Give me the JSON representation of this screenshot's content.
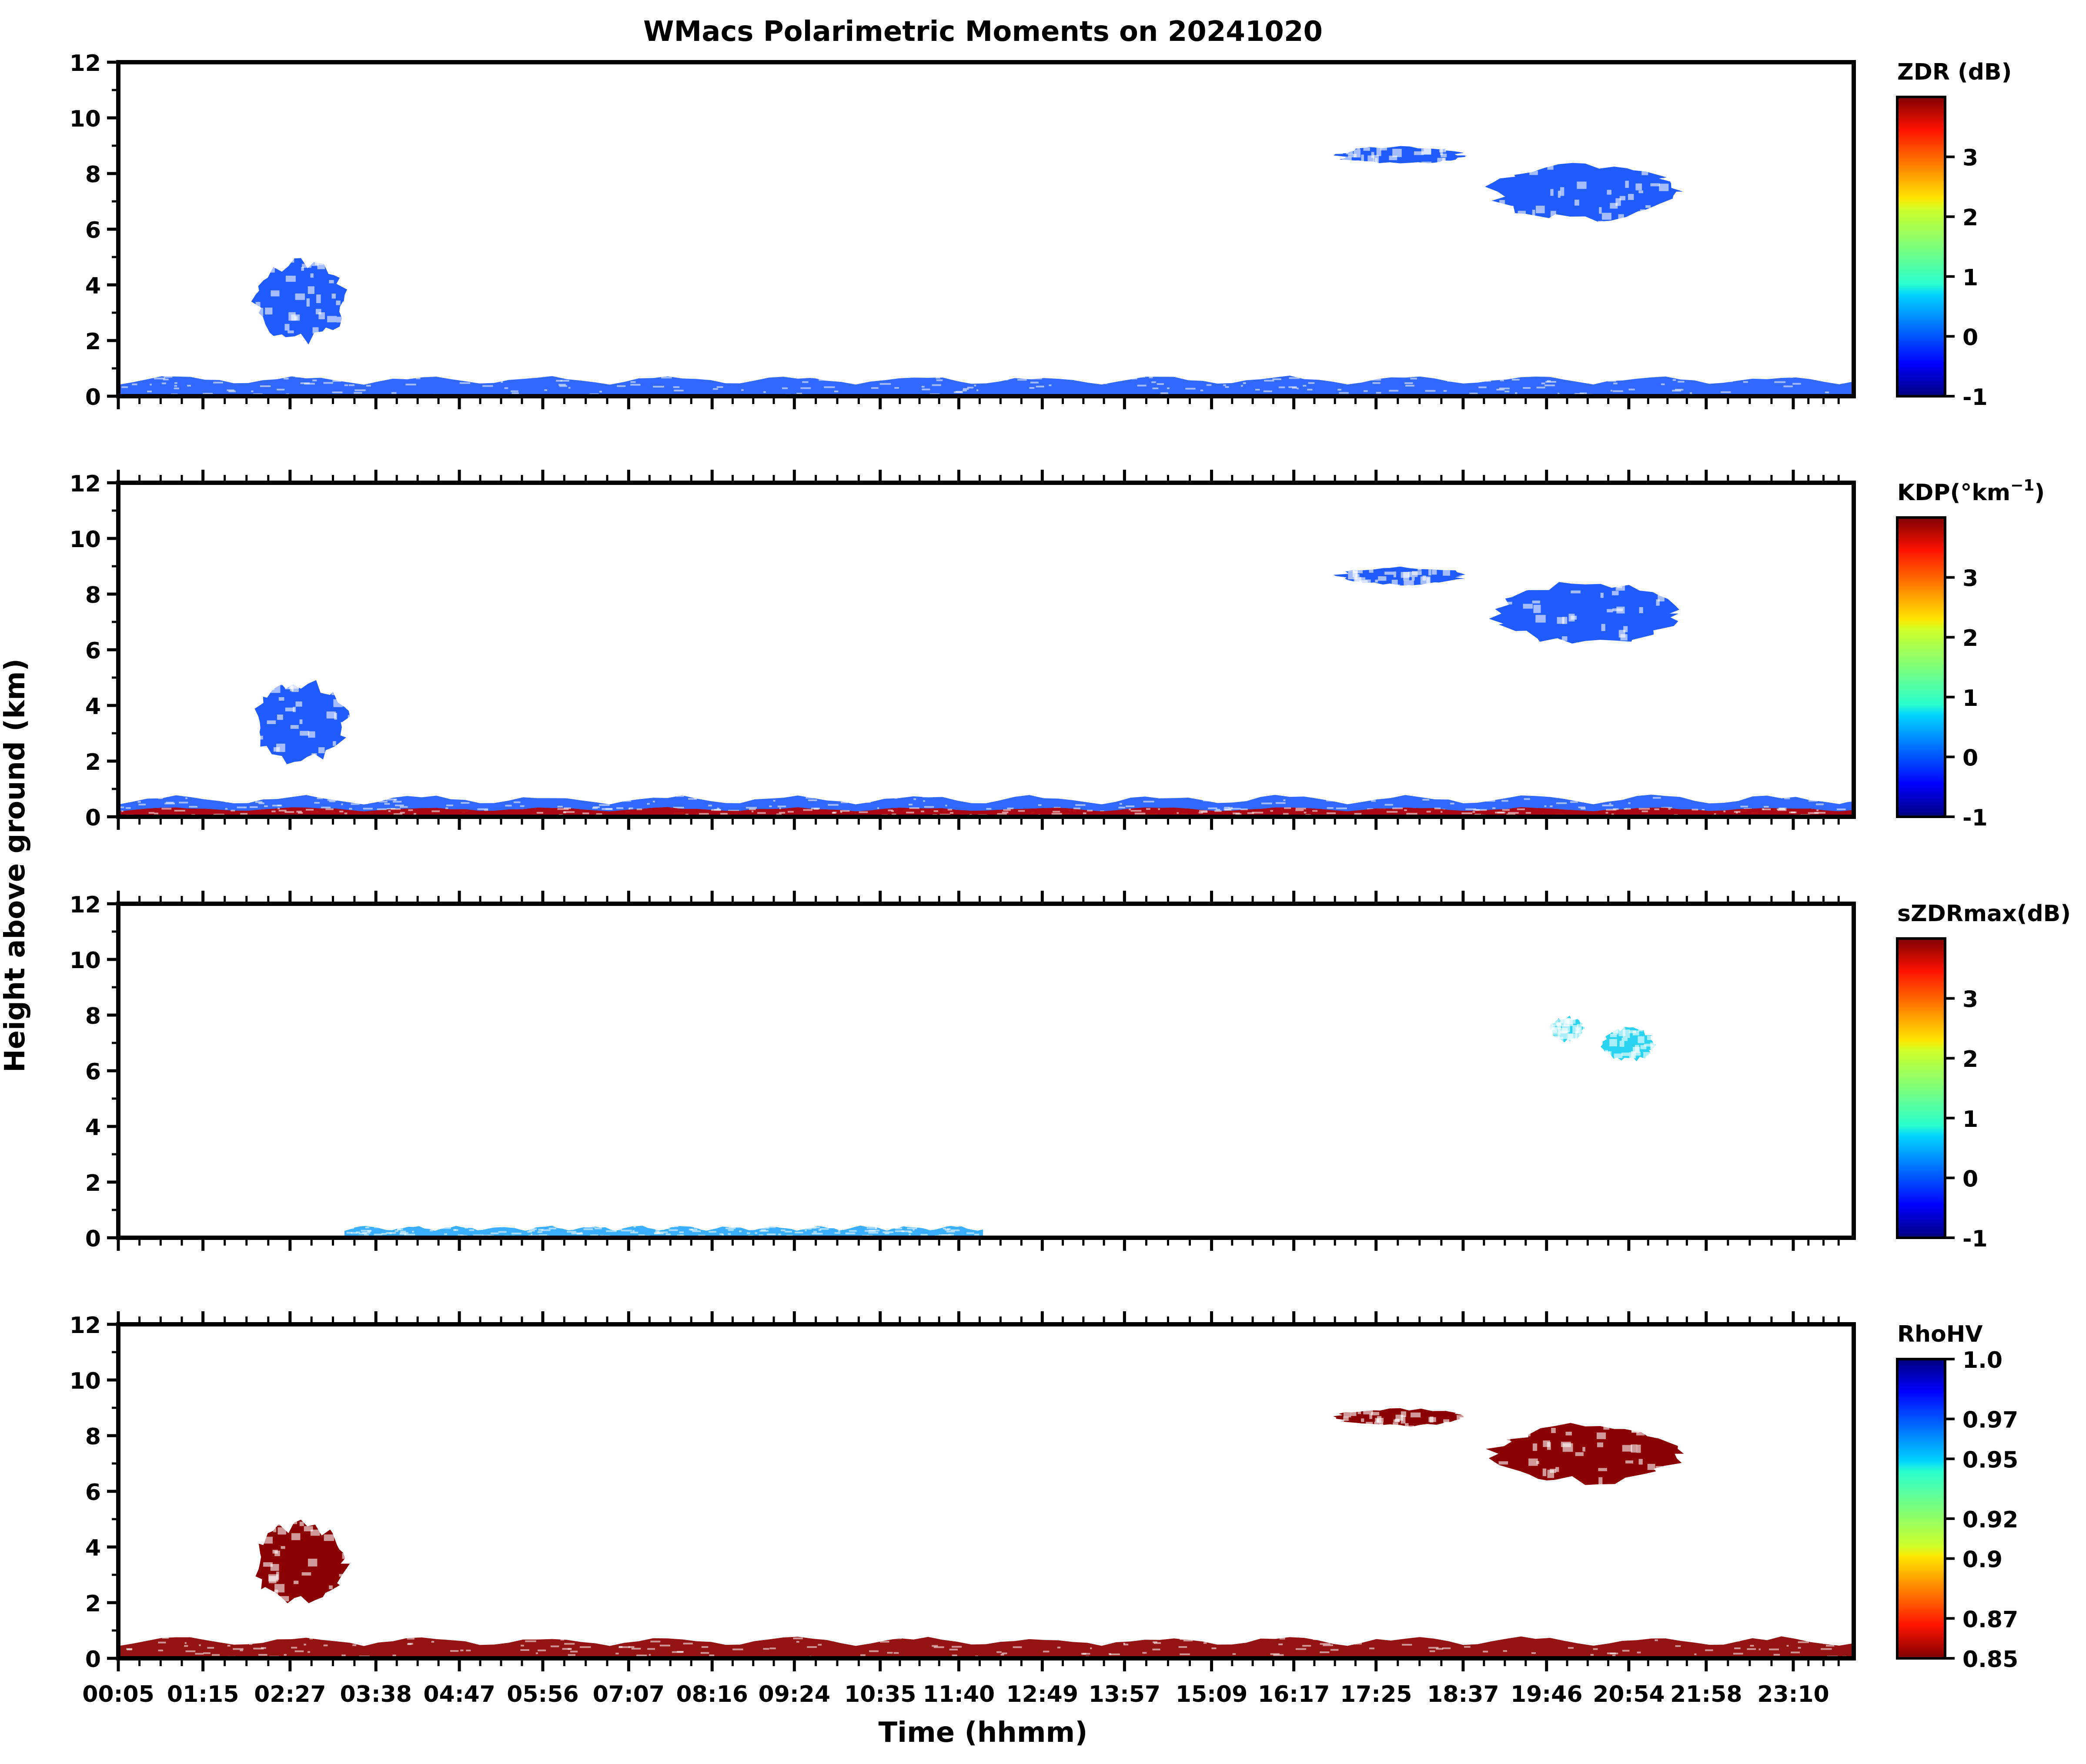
{
  "chart_data": {
    "type": "heatmap",
    "title": "WMacs Polarimetric Moments on 20241020",
    "xlabel": "Time (hhmm)",
    "ylabel": "Height above ground (km)",
    "x_ticks": [
      "00:05",
      "01:15",
      "02:27",
      "03:38",
      "04:47",
      "05:56",
      "07:07",
      "08:16",
      "09:24",
      "10:35",
      "11:40",
      "12:49",
      "13:57",
      "15:09",
      "16:17",
      "17:25",
      "18:37",
      "19:46",
      "20:54",
      "21:58",
      "23:10"
    ],
    "x_range_hours": [
      0.0833,
      24.0
    ],
    "ylim": [
      0,
      12
    ],
    "y_ticks": [
      0,
      2,
      4,
      6,
      8,
      10,
      12
    ],
    "panels": [
      {
        "variable": "ZDR",
        "colorbar_label": "ZDR (dB)",
        "colorbar_ticks": [
          "-1",
          "0",
          "1",
          "2",
          "3"
        ],
        "colorbar_range": [
          -1,
          4
        ],
        "colormap": "jet",
        "echoes": [
          {
            "name": "boundary-layer",
            "color": "#1f5bff",
            "t": [
              0.08,
              24.0
            ],
            "z": [
              0.0,
              0.75
            ]
          },
          {
            "name": "midlevel-cell",
            "color": "#1f5bff",
            "t": [
              1.9,
              3.3
            ],
            "z": [
              1.8,
              5.0
            ]
          },
          {
            "name": "upper-band",
            "color": "#1f5bff",
            "t": [
              16.8,
              18.7
            ],
            "z": [
              8.3,
              9.0
            ]
          },
          {
            "name": "upper-cloud",
            "color": "#1f5bff",
            "t": [
              18.9,
              21.7
            ],
            "z": [
              6.2,
              8.5
            ]
          }
        ]
      },
      {
        "variable": "KDP",
        "colorbar_label": "KDP(°km",
        "colorbar_label_exp": "−1",
        "colorbar_label_tail": ")",
        "colorbar_ticks": [
          "-1",
          "0",
          "1",
          "2",
          "3"
        ],
        "colorbar_range": [
          -1,
          4
        ],
        "colormap": "jet",
        "echoes": [
          {
            "name": "boundary-layer",
            "color": "#1f5bff",
            "t": [
              0.08,
              24.0
            ],
            "z": [
              0.0,
              0.8
            ]
          },
          {
            "name": "boundary-layer-high-kdp",
            "color": "#b30000",
            "t": [
              0.08,
              24.0
            ],
            "z": [
              0.0,
              0.35
            ]
          },
          {
            "name": "midlevel-cell",
            "color": "#1f5bff",
            "t": [
              1.9,
              3.3
            ],
            "z": [
              1.8,
              5.0
            ]
          },
          {
            "name": "upper-band",
            "color": "#1f5bff",
            "t": [
              16.8,
              18.7
            ],
            "z": [
              8.3,
              9.0
            ]
          },
          {
            "name": "upper-cloud",
            "color": "#1f5bff",
            "t": [
              18.9,
              21.7
            ],
            "z": [
              6.1,
              8.5
            ]
          }
        ]
      },
      {
        "variable": "sZDRmax",
        "colorbar_label": "sZDRmax(dB)",
        "colorbar_ticks": [
          "-1",
          "0",
          "1",
          "2",
          "3"
        ],
        "colorbar_range": [
          -1,
          4
        ],
        "colormap": "jet",
        "echoes": [
          {
            "name": "boundary-layer",
            "color": "#2aa8ff",
            "t": [
              3.2,
              12.0
            ],
            "z": [
              0.0,
              0.45
            ]
          },
          {
            "name": "upper-cells-1",
            "color": "#2ad4f0",
            "t": [
              19.8,
              20.3
            ],
            "z": [
              7.0,
              8.0
            ]
          },
          {
            "name": "upper-cells-2",
            "color": "#2ad4f0",
            "t": [
              20.5,
              21.3
            ],
            "z": [
              6.3,
              7.6
            ]
          }
        ]
      },
      {
        "variable": "RhoHV",
        "colorbar_label": "RhoHV",
        "colorbar_ticks": [
          "0.85",
          "0.87",
          "0.9",
          "0.92",
          "0.95",
          "0.97",
          "1.0"
        ],
        "colorbar_range": [
          0.85,
          1.0
        ],
        "colormap": "jet_r",
        "echoes": [
          {
            "name": "boundary-layer",
            "color": "#8b0000",
            "t": [
              0.08,
              24.0
            ],
            "z": [
              0.0,
              0.8
            ]
          },
          {
            "name": "midlevel-cell",
            "color": "#8b0000",
            "t": [
              1.9,
              3.3
            ],
            "z": [
              1.8,
              5.0
            ]
          },
          {
            "name": "upper-band",
            "color": "#8b0000",
            "t": [
              16.8,
              18.7
            ],
            "z": [
              8.3,
              9.0
            ]
          },
          {
            "name": "upper-cloud",
            "color": "#8b0000",
            "t": [
              18.9,
              21.7
            ],
            "z": [
              6.2,
              8.5
            ]
          }
        ]
      }
    ]
  }
}
